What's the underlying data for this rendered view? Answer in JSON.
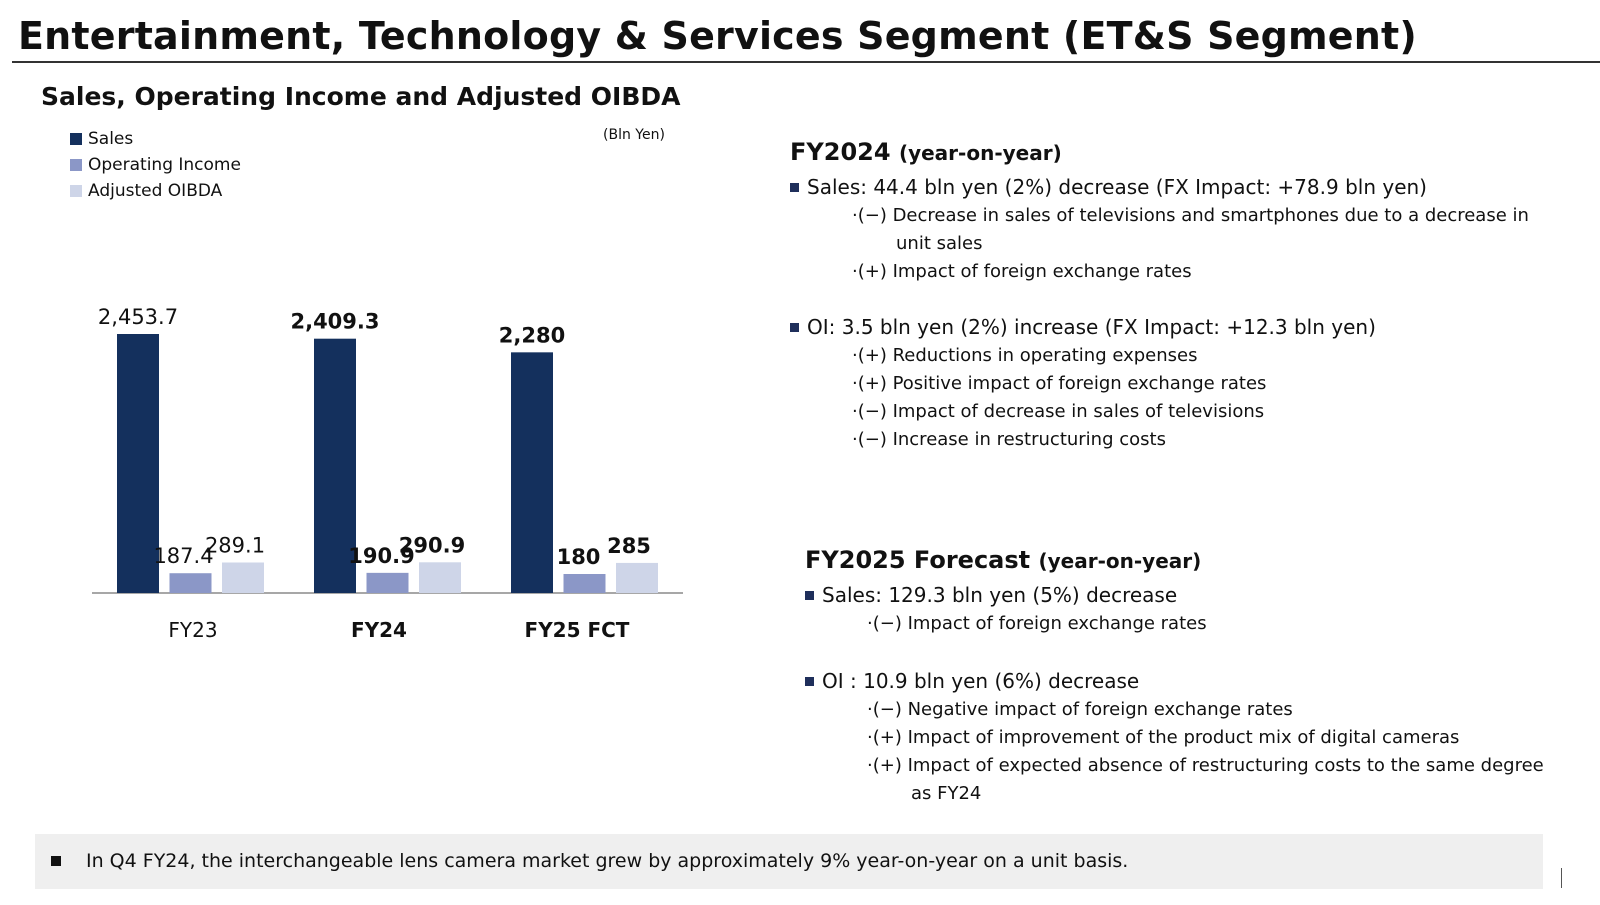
{
  "page": {
    "title": "Entertainment, Technology & Services Segment (ET&S Segment)"
  },
  "chart_data": {
    "type": "bar",
    "title": "Sales, Operating Income and Adjusted OIBDA",
    "unit": "(Bln Yen)",
    "categories": [
      "FY23",
      "FY24",
      "FY25 FCT"
    ],
    "bold_categories": [
      false,
      true,
      true
    ],
    "series": [
      {
        "name": "Sales",
        "color": "#14305d",
        "values": [
          2453.7,
          2409.3,
          2280
        ],
        "labels": [
          "2,453.7",
          "2,409.3",
          "2,280"
        ]
      },
      {
        "name": "Operating Income",
        "color": "#8b97c7",
        "values": [
          187.4,
          190.9,
          180
        ],
        "labels": [
          "187.4",
          "190.9",
          "180"
        ]
      },
      {
        "name": "Adjusted OIBDA",
        "color": "#ced5e8",
        "values": [
          289.1,
          290.9,
          285
        ],
        "labels": [
          "289.1",
          "290.9",
          "285"
        ]
      }
    ],
    "legend_position": "top-left",
    "grid": false
  },
  "fy2024": {
    "heading": "FY2024",
    "heading_note": "(year-on-year)",
    "sales": {
      "text": "Sales: 44.4 bln yen (2%) decrease (FX Impact: +78.9 bln yen)",
      "items": [
        "·(−) Decrease in sales of televisions and smartphones due to a decrease in",
        "unit sales",
        "·(+) Impact of foreign exchange rates"
      ]
    },
    "oi": {
      "text": "OI: 3.5 bln yen (2%) increase (FX Impact: +12.3 bln yen)",
      "items": [
        "·(+) Reductions in operating expenses",
        "·(+) Positive impact of foreign exchange rates",
        "·(−) Impact of decrease in sales of televisions",
        "·(−) Increase in restructuring costs"
      ]
    }
  },
  "fy2025": {
    "heading": "FY2025 Forecast",
    "heading_note": "(year-on-year)",
    "sales": {
      "text": "Sales: 129.3 bln yen (5%) decrease",
      "items": [
        "·(−) Impact of foreign exchange rates"
      ]
    },
    "oi": {
      "text": "OI : 10.9 bln yen (6%) decrease",
      "items": [
        "·(−) Negative impact of foreign exchange rates",
        "·(+) Impact of improvement of the product mix of digital cameras",
        "·(+) Impact of expected absence of restructuring costs to the same degree",
        "as FY24"
      ]
    }
  },
  "footnote": "In Q4 FY24, the interchangeable lens camera market grew by approximately 9% year-on-year on a unit basis."
}
